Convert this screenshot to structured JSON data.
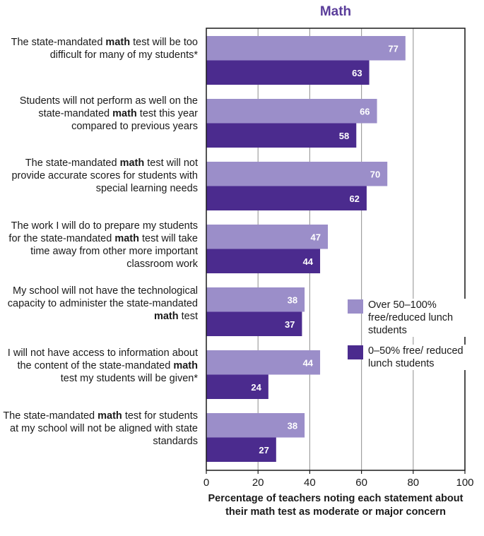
{
  "chart_data": {
    "type": "bar",
    "orientation": "horizontal",
    "title": "Math",
    "xlabel": "Percentage of teachers noting each statement about their math test as moderate or major concern",
    "xlim": [
      0,
      100
    ],
    "xticks": [
      "0",
      "20",
      "40",
      "60",
      "80",
      "100"
    ],
    "grid": true,
    "legend_position": "right",
    "categories": [
      [
        {
          "t": "The state-mandated "
        },
        {
          "t": "math",
          "b": true
        },
        {
          "t": " test will be too difficult for many of my students*"
        }
      ],
      [
        {
          "t": "Students will not perform as well on the state-mandated "
        },
        {
          "t": "math",
          "b": true
        },
        {
          "t": " test this year compared to previous years"
        }
      ],
      [
        {
          "t": "The state-mandated "
        },
        {
          "t": "math",
          "b": true
        },
        {
          "t": " test will not provide accurate scores for students with special learning needs"
        }
      ],
      [
        {
          "t": "The work I will do to prepare my students for the state-mandated "
        },
        {
          "t": "math",
          "b": true
        },
        {
          "t": " test will take time away from other more important classroom work"
        }
      ],
      [
        {
          "t": "My school will not have the technological capacity to administer the state-mandated "
        },
        {
          "t": "math",
          "b": true
        },
        {
          "t": " test"
        }
      ],
      [
        {
          "t": "I will not have access to information about the content of the state-mandated "
        },
        {
          "t": "math",
          "b": true
        },
        {
          "t": " test my students will be given*"
        }
      ],
      [
        {
          "t": "The state-mandated "
        },
        {
          "t": "math",
          "b": true
        },
        {
          "t": " test for students at my school will not be aligned with state standards"
        }
      ]
    ],
    "series": [
      {
        "name": "Over 50–100% free/reduced lunch students",
        "color": "#9b8ec9",
        "values": [
          77,
          66,
          70,
          47,
          38,
          44,
          38
        ]
      },
      {
        "name": "0–50% free/ reduced lunch students",
        "color": "#4b2b8e",
        "values": [
          63,
          58,
          62,
          44,
          37,
          24,
          27
        ]
      }
    ]
  }
}
